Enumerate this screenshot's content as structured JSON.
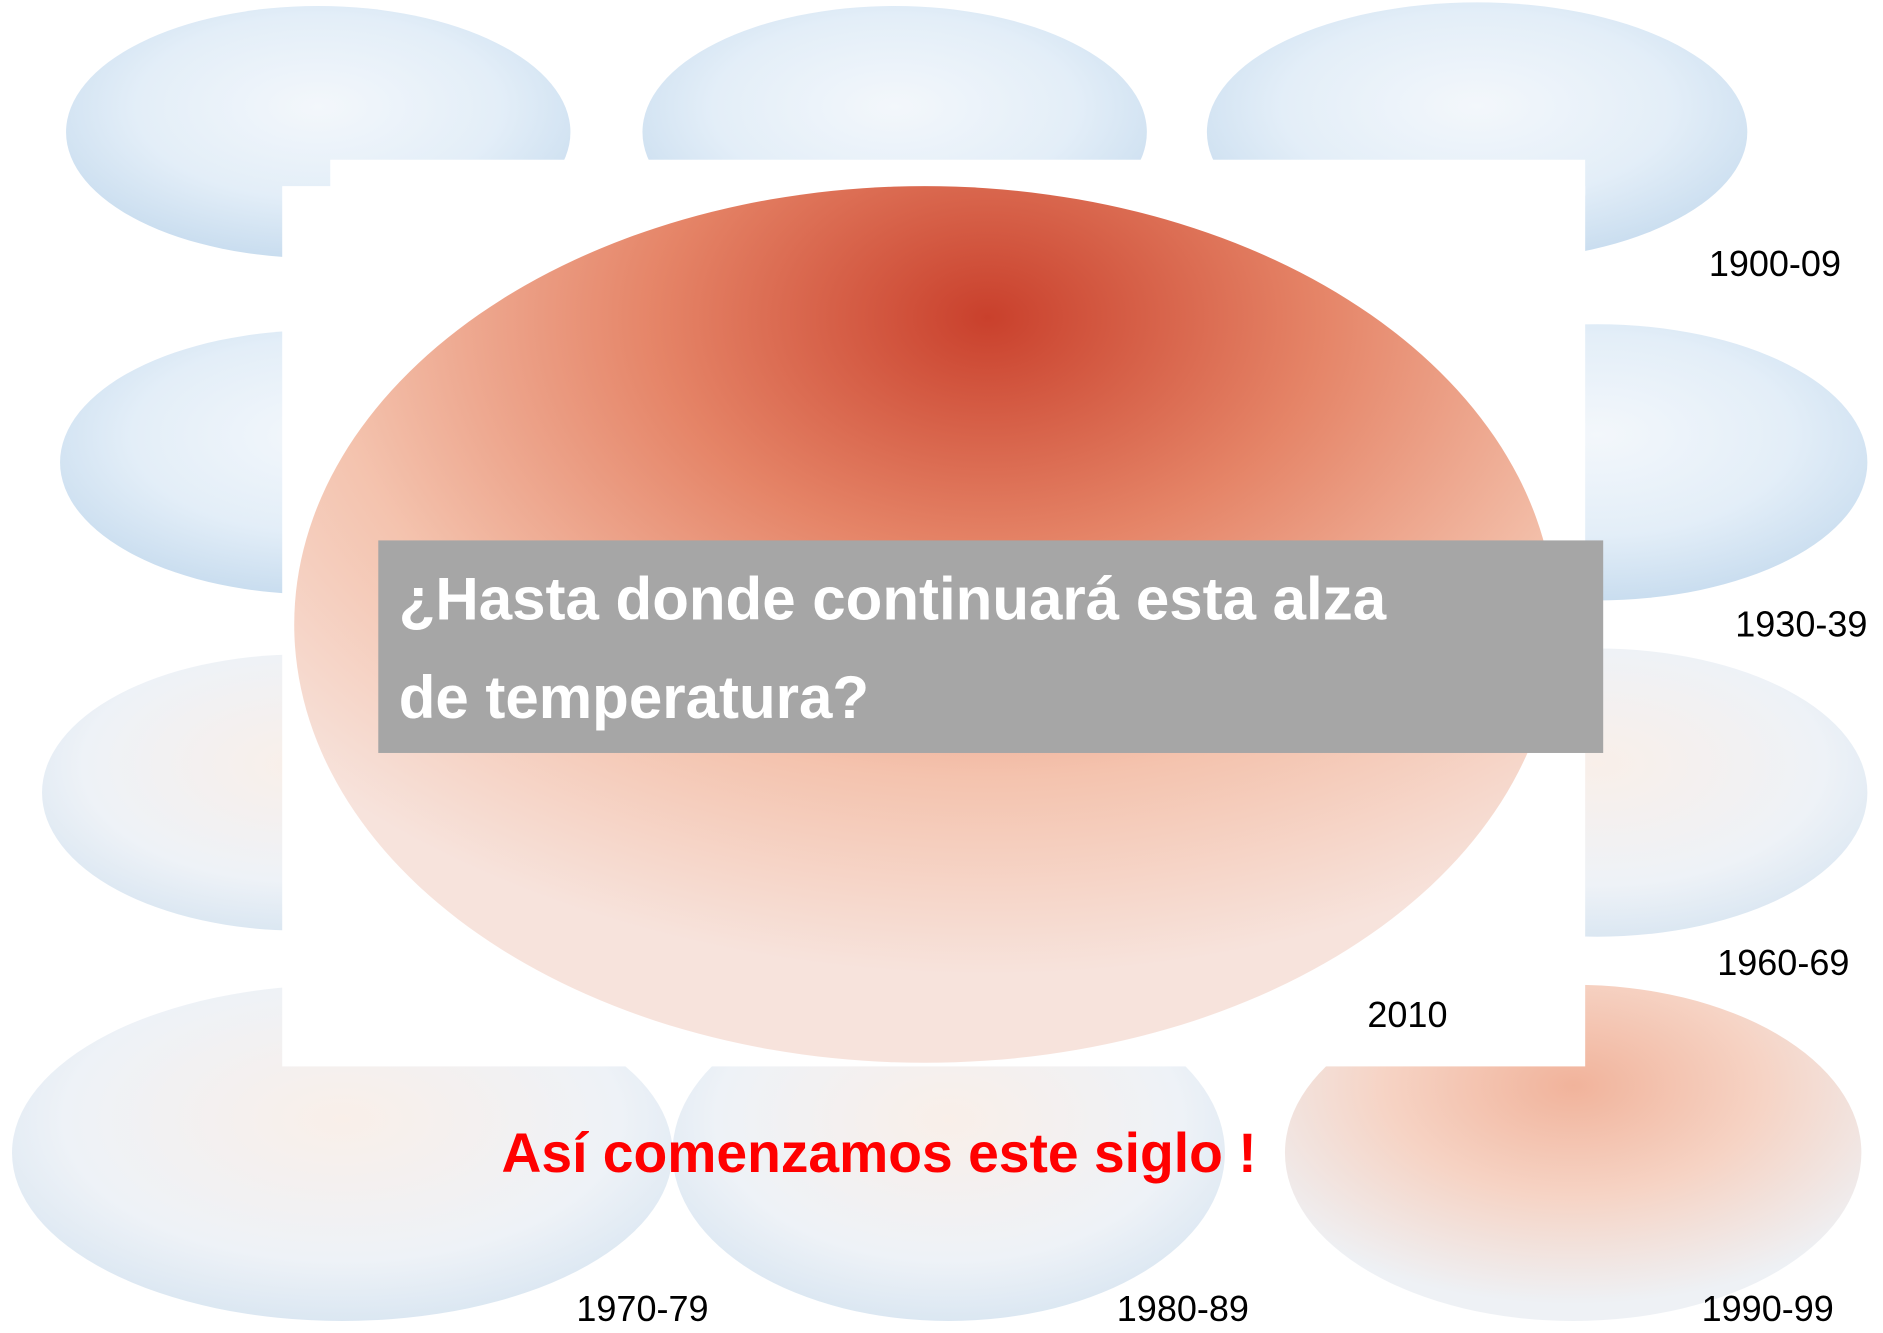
{
  "slide": {
    "map_labels": [
      "1900-09",
      "1930-39",
      "1960-69",
      "1970-79",
      "1980-89",
      "1990-99"
    ],
    "main_map_label": "2010",
    "question_lines": [
      "¿Hasta donde continuará esta alza",
      "de temperatura?"
    ],
    "caption": "Así comenzamos este siglo !"
  }
}
